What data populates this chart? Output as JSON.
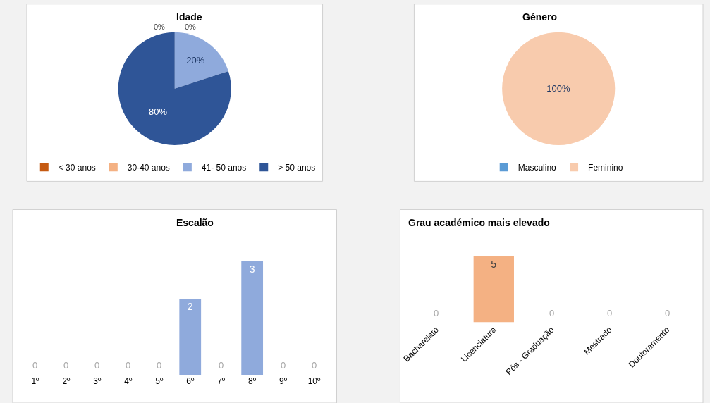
{
  "chart_data": [
    {
      "type": "pie",
      "title": "Idade",
      "categories": [
        "< 30 anos",
        "30-40 anos",
        "41- 50 anos",
        "> 50 anos"
      ],
      "values": [
        0,
        0,
        20,
        80
      ],
      "colors": [
        "#c55a11",
        "#f4b183",
        "#8faadc",
        "#2f5597"
      ],
      "value_labels": [
        "0%",
        "0%",
        "20%",
        "80%"
      ],
      "legend": "bottom"
    },
    {
      "type": "pie",
      "title": "Género",
      "categories": [
        "Masculino",
        "Feminino"
      ],
      "values": [
        0,
        100
      ],
      "colors": [
        "#5b9bd5",
        "#f8cbad"
      ],
      "value_labels": [
        null,
        "100%"
      ],
      "legend": "bottom"
    },
    {
      "type": "bar",
      "title": "Escalão",
      "categories": [
        "1º",
        "2º",
        "3º",
        "4º",
        "5º",
        "6º",
        "7º",
        "8º",
        "9º",
        "10º"
      ],
      "values": [
        0,
        0,
        0,
        0,
        0,
        2,
        0,
        3,
        0,
        0
      ],
      "color": "#8faadc",
      "data_labels": true
    },
    {
      "type": "bar",
      "title": "Grau académico mais elevado",
      "categories": [
        "Bacharelato",
        "Licenciatura",
        "Pós - Graduação",
        "Mestrado",
        "Doutoramento"
      ],
      "values": [
        0,
        5,
        0,
        0,
        0
      ],
      "color": "#f4b183",
      "data_labels": true
    }
  ]
}
